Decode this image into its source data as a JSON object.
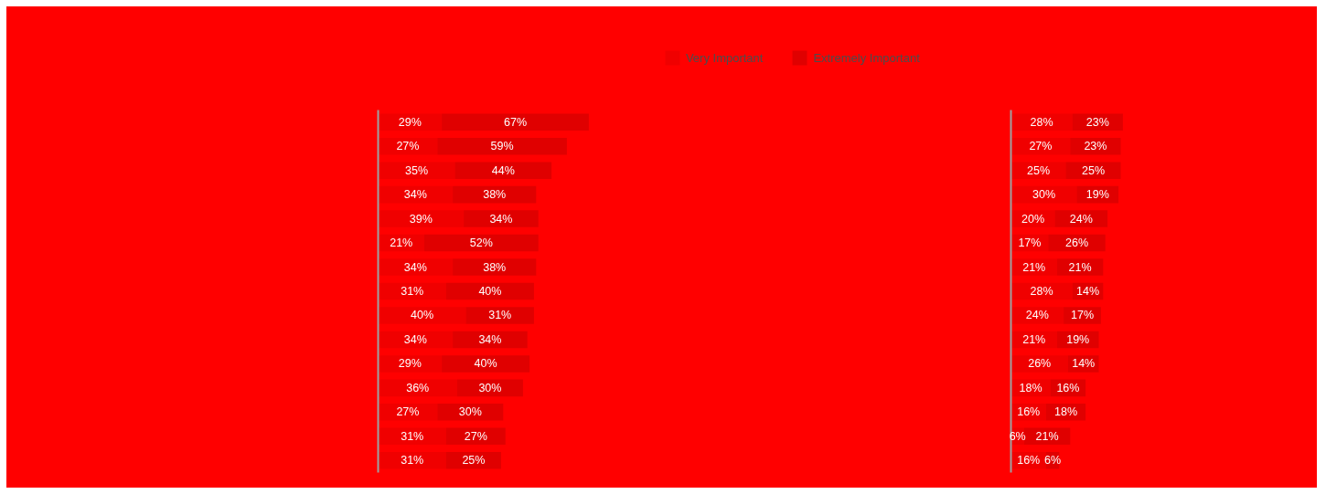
{
  "chart_data": [
    {
      "type": "bar",
      "orientation": "horizontal",
      "stacked": true,
      "legend": "top",
      "tick_labels": false,
      "categories": [
        null,
        null,
        null,
        null,
        null,
        null,
        null,
        null,
        null,
        null,
        null,
        null,
        null,
        null,
        null
      ],
      "series": [
        {
          "name": "Very Important",
          "color": "#f00000",
          "values": [
            29,
            27,
            35,
            34,
            39,
            21,
            34,
            31,
            40,
            34,
            29,
            36,
            27,
            31,
            31
          ],
          "value_labels": [
            "29%",
            "27%",
            "35%",
            "34%",
            "39%",
            "21%",
            "34%",
            "31%",
            "40%",
            "34%",
            "29%",
            "36%",
            "27%",
            "31%",
            "31%"
          ]
        },
        {
          "name": "Extremely Important",
          "color": "#e00000",
          "values": [
            67,
            59,
            44,
            38,
            34,
            52,
            38,
            40,
            31,
            34,
            40,
            30,
            30,
            27,
            25
          ],
          "value_labels": [
            "67%",
            "59%",
            "44%",
            "38%",
            "34%",
            "52%",
            "38%",
            "40%",
            "31%",
            "34%",
            "40%",
            "30%",
            "30%",
            "27%",
            "25%"
          ]
        }
      ]
    },
    {
      "type": "bar",
      "orientation": "horizontal",
      "stacked": true,
      "tick_labels": false,
      "categories": [
        null,
        null,
        null,
        null,
        null,
        null,
        null,
        null,
        null,
        null,
        null,
        null,
        null,
        null,
        null
      ],
      "series": [
        {
          "color": "#f00000",
          "values": [
            28,
            27,
            25,
            30,
            20,
            17,
            21,
            28,
            24,
            21,
            26,
            18,
            16,
            6,
            16
          ],
          "value_labels": [
            "28%",
            "27%",
            "25%",
            "30%",
            "20%",
            "17%",
            "21%",
            "28%",
            "24%",
            "21%",
            "26%",
            "18%",
            "16%",
            "6%",
            "16%"
          ]
        },
        {
          "color": "#e00000",
          "values": [
            23,
            23,
            25,
            19,
            24,
            26,
            21,
            14,
            17,
            19,
            14,
            16,
            18,
            21,
            6
          ],
          "value_labels": [
            "23%",
            "23%",
            "25%",
            "19%",
            "24%",
            "26%",
            "21%",
            "14%",
            "17%",
            "19%",
            "14%",
            "16%",
            "18%",
            "21%",
            "6%"
          ]
        }
      ]
    }
  ]
}
